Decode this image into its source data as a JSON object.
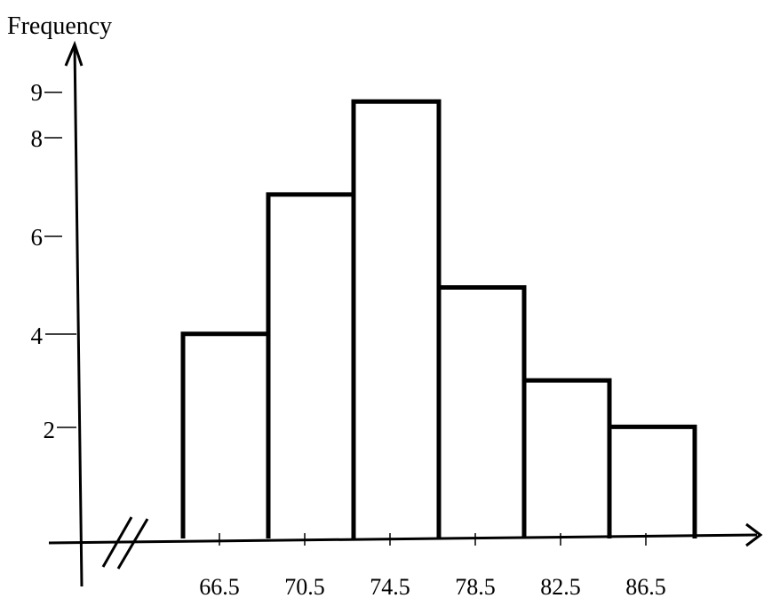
{
  "chart_data": {
    "type": "bar",
    "ylabel": "Frequency",
    "xlabel": "",
    "y_ticks": [
      "2",
      "4",
      "6",
      "8",
      "9"
    ],
    "categories": [
      "66.5",
      "70.5",
      "74.5",
      "78.5",
      "82.5",
      "86.5"
    ],
    "values": [
      4,
      7,
      9,
      5,
      3,
      2
    ],
    "axis_break": true,
    "grid": false
  }
}
